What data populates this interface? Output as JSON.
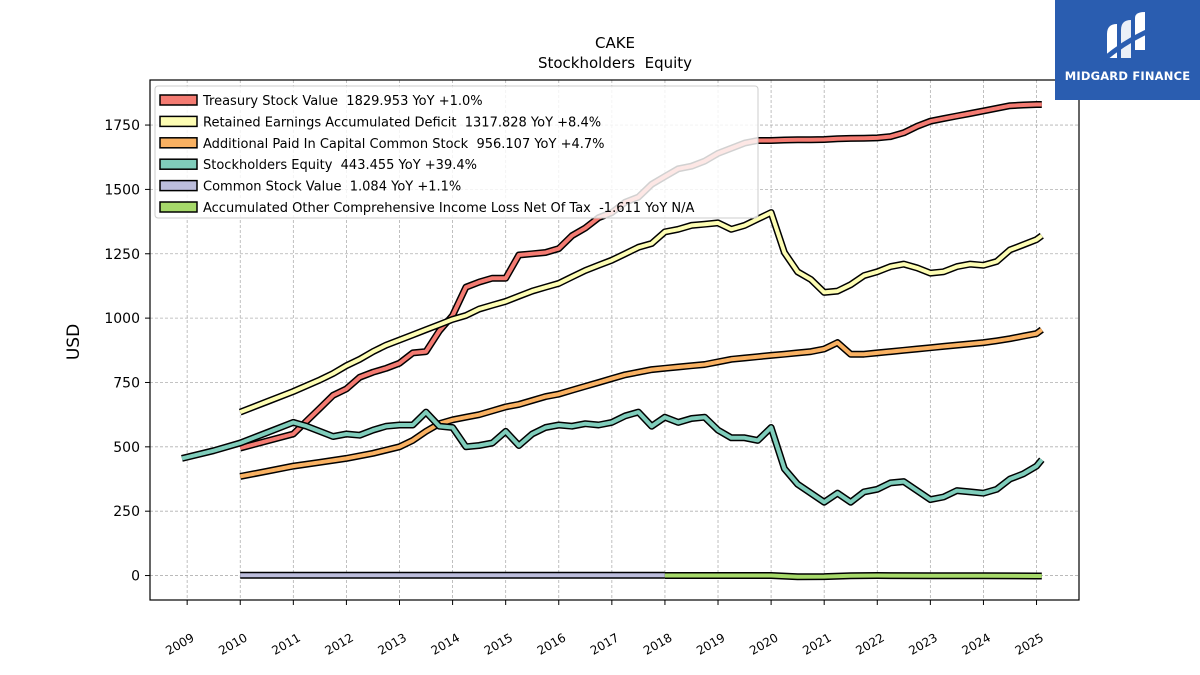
{
  "brand": {
    "name": "MIDGARD FINANCE",
    "bg": "#2a5db0"
  },
  "chart_data": {
    "type": "line",
    "title": "CAKE",
    "subtitle": "Stockholders  Equity",
    "xlabel": "",
    "ylabel": "USD",
    "xlim": [
      2008.3,
      2025.8
    ],
    "ylim": [
      -95,
      1925
    ],
    "yticks": [
      0,
      250,
      500,
      750,
      1000,
      1250,
      1500,
      1750
    ],
    "xticks": [
      "2009",
      "2010",
      "2011",
      "2012",
      "2013",
      "2014",
      "2015",
      "2016",
      "2017",
      "2018",
      "2019",
      "2020",
      "2021",
      "2022",
      "2023",
      "2024",
      "2025"
    ],
    "grid": true,
    "legend_position": "top-left",
    "series": [
      {
        "name": "Treasury Stock Value",
        "legend": "Treasury Stock Value  1829.953 YoY +1.0%",
        "color": "#f47b72",
        "points": [
          [
            2010,
            495
          ],
          [
            2011,
            550
          ],
          [
            2011.25,
            600
          ],
          [
            2011.5,
            650
          ],
          [
            2011.75,
            700
          ],
          [
            2012,
            725
          ],
          [
            2012.25,
            770
          ],
          [
            2012.5,
            790
          ],
          [
            2012.75,
            805
          ],
          [
            2013,
            825
          ],
          [
            2013.25,
            865
          ],
          [
            2013.5,
            870
          ],
          [
            2013.75,
            950
          ],
          [
            2014,
            1010
          ],
          [
            2014.25,
            1120
          ],
          [
            2014.5,
            1140
          ],
          [
            2014.75,
            1155
          ],
          [
            2015,
            1155
          ],
          [
            2015.25,
            1245
          ],
          [
            2015.5,
            1250
          ],
          [
            2015.75,
            1255
          ],
          [
            2016,
            1270
          ],
          [
            2016.25,
            1320
          ],
          [
            2016.5,
            1350
          ],
          [
            2016.75,
            1390
          ],
          [
            2017,
            1410
          ],
          [
            2017.25,
            1450
          ],
          [
            2017.5,
            1470
          ],
          [
            2017.75,
            1520
          ],
          [
            2018,
            1550
          ],
          [
            2018.25,
            1580
          ],
          [
            2018.5,
            1590
          ],
          [
            2018.75,
            1610
          ],
          [
            2019,
            1640
          ],
          [
            2019.25,
            1660
          ],
          [
            2019.5,
            1680
          ],
          [
            2019.75,
            1690
          ],
          [
            2020,
            1690
          ],
          [
            2020.25,
            1692
          ],
          [
            2020.5,
            1693
          ],
          [
            2020.75,
            1693
          ],
          [
            2021,
            1694
          ],
          [
            2021.25,
            1697
          ],
          [
            2021.5,
            1698
          ],
          [
            2021.75,
            1699
          ],
          [
            2022,
            1700
          ],
          [
            2022.25,
            1705
          ],
          [
            2022.5,
            1720
          ],
          [
            2022.75,
            1745
          ],
          [
            2023,
            1765
          ],
          [
            2023.25,
            1775
          ],
          [
            2023.5,
            1785
          ],
          [
            2023.75,
            1795
          ],
          [
            2024,
            1805
          ],
          [
            2024.25,
            1815
          ],
          [
            2024.5,
            1825
          ],
          [
            2024.75,
            1828
          ],
          [
            2025,
            1830
          ],
          [
            2025.1,
            1830
          ]
        ]
      },
      {
        "name": "Retained Earnings Accumulated Deficit",
        "legend": "Retained Earnings Accumulated Deficit  1317.828 YoY +8.4%",
        "color": "#fdfdb3",
        "points": [
          [
            2010,
            635
          ],
          [
            2010.5,
            675
          ],
          [
            2011,
            715
          ],
          [
            2011.5,
            760
          ],
          [
            2011.75,
            785
          ],
          [
            2012,
            815
          ],
          [
            2012.25,
            840
          ],
          [
            2012.5,
            870
          ],
          [
            2012.75,
            895
          ],
          [
            2013,
            915
          ],
          [
            2013.25,
            935
          ],
          [
            2013.5,
            955
          ],
          [
            2013.75,
            975
          ],
          [
            2014,
            995
          ],
          [
            2014.25,
            1010
          ],
          [
            2014.5,
            1035
          ],
          [
            2014.75,
            1050
          ],
          [
            2015,
            1065
          ],
          [
            2015.25,
            1085
          ],
          [
            2015.5,
            1105
          ],
          [
            2015.75,
            1120
          ],
          [
            2016,
            1135
          ],
          [
            2016.25,
            1160
          ],
          [
            2016.5,
            1185
          ],
          [
            2016.75,
            1205
          ],
          [
            2017,
            1225
          ],
          [
            2017.25,
            1250
          ],
          [
            2017.5,
            1275
          ],
          [
            2017.75,
            1290
          ],
          [
            2018,
            1335
          ],
          [
            2018.25,
            1345
          ],
          [
            2018.5,
            1360
          ],
          [
            2018.75,
            1365
          ],
          [
            2019,
            1370
          ],
          [
            2019.25,
            1345
          ],
          [
            2019.5,
            1360
          ],
          [
            2019.75,
            1385
          ],
          [
            2020,
            1410
          ],
          [
            2020.25,
            1255
          ],
          [
            2020.5,
            1180
          ],
          [
            2020.75,
            1150
          ],
          [
            2021,
            1100
          ],
          [
            2021.25,
            1105
          ],
          [
            2021.5,
            1130
          ],
          [
            2021.75,
            1165
          ],
          [
            2022,
            1180
          ],
          [
            2022.25,
            1200
          ],
          [
            2022.5,
            1210
          ],
          [
            2022.75,
            1195
          ],
          [
            2023,
            1175
          ],
          [
            2023.25,
            1180
          ],
          [
            2023.5,
            1200
          ],
          [
            2023.75,
            1210
          ],
          [
            2024,
            1205
          ],
          [
            2024.25,
            1220
          ],
          [
            2024.5,
            1265
          ],
          [
            2024.75,
            1285
          ],
          [
            2025,
            1305
          ],
          [
            2025.1,
            1320
          ]
        ]
      },
      {
        "name": "Additional Paid In Capital Common Stock",
        "legend": "Additional Paid In Capital Common Stock  956.107 YoY +4.7%",
        "color": "#f9b162",
        "points": [
          [
            2010,
            385
          ],
          [
            2010.5,
            405
          ],
          [
            2011,
            425
          ],
          [
            2011.5,
            440
          ],
          [
            2012,
            455
          ],
          [
            2012.5,
            475
          ],
          [
            2013,
            500
          ],
          [
            2013.25,
            525
          ],
          [
            2013.5,
            560
          ],
          [
            2013.75,
            590
          ],
          [
            2014,
            605
          ],
          [
            2014.25,
            615
          ],
          [
            2014.5,
            625
          ],
          [
            2014.75,
            640
          ],
          [
            2015,
            655
          ],
          [
            2015.25,
            665
          ],
          [
            2015.5,
            680
          ],
          [
            2015.75,
            695
          ],
          [
            2016,
            705
          ],
          [
            2016.25,
            720
          ],
          [
            2016.5,
            735
          ],
          [
            2016.75,
            750
          ],
          [
            2017,
            765
          ],
          [
            2017.25,
            780
          ],
          [
            2017.5,
            790
          ],
          [
            2017.75,
            800
          ],
          [
            2018,
            805
          ],
          [
            2018.25,
            810
          ],
          [
            2018.5,
            815
          ],
          [
            2018.75,
            820
          ],
          [
            2019,
            830
          ],
          [
            2019.25,
            840
          ],
          [
            2019.5,
            845
          ],
          [
            2019.75,
            850
          ],
          [
            2020,
            855
          ],
          [
            2020.25,
            860
          ],
          [
            2020.5,
            865
          ],
          [
            2020.75,
            870
          ],
          [
            2021,
            880
          ],
          [
            2021.25,
            905
          ],
          [
            2021.5,
            860
          ],
          [
            2021.75,
            860
          ],
          [
            2022,
            865
          ],
          [
            2022.25,
            870
          ],
          [
            2022.5,
            875
          ],
          [
            2022.75,
            880
          ],
          [
            2023,
            885
          ],
          [
            2023.25,
            890
          ],
          [
            2023.5,
            895
          ],
          [
            2023.75,
            900
          ],
          [
            2024,
            905
          ],
          [
            2024.25,
            912
          ],
          [
            2024.5,
            920
          ],
          [
            2024.75,
            930
          ],
          [
            2025,
            940
          ],
          [
            2025.1,
            955
          ]
        ]
      },
      {
        "name": "Stockholders Equity",
        "legend": "Stockholders Equity  443.455 YoY +39.4%",
        "color": "#7fcdbb",
        "points": [
          [
            2008.9,
            455
          ],
          [
            2009.5,
            485
          ],
          [
            2010,
            515
          ],
          [
            2010.5,
            555
          ],
          [
            2011,
            595
          ],
          [
            2011.25,
            580
          ],
          [
            2011.5,
            560
          ],
          [
            2011.75,
            540
          ],
          [
            2012,
            550
          ],
          [
            2012.25,
            545
          ],
          [
            2012.5,
            565
          ],
          [
            2012.75,
            580
          ],
          [
            2013,
            585
          ],
          [
            2013.25,
            585
          ],
          [
            2013.5,
            635
          ],
          [
            2013.75,
            580
          ],
          [
            2014,
            575
          ],
          [
            2014.25,
            500
          ],
          [
            2014.5,
            505
          ],
          [
            2014.75,
            515
          ],
          [
            2015,
            560
          ],
          [
            2015.25,
            505
          ],
          [
            2015.5,
            550
          ],
          [
            2015.75,
            575
          ],
          [
            2016,
            585
          ],
          [
            2016.25,
            580
          ],
          [
            2016.5,
            590
          ],
          [
            2016.75,
            585
          ],
          [
            2017,
            595
          ],
          [
            2017.25,
            620
          ],
          [
            2017.5,
            635
          ],
          [
            2017.75,
            580
          ],
          [
            2018,
            615
          ],
          [
            2018.25,
            595
          ],
          [
            2018.5,
            610
          ],
          [
            2018.75,
            615
          ],
          [
            2019,
            565
          ],
          [
            2019.25,
            535
          ],
          [
            2019.5,
            535
          ],
          [
            2019.75,
            525
          ],
          [
            2020,
            575
          ],
          [
            2020.25,
            415
          ],
          [
            2020.5,
            355
          ],
          [
            2020.75,
            320
          ],
          [
            2021,
            285
          ],
          [
            2021.25,
            320
          ],
          [
            2021.5,
            285
          ],
          [
            2021.75,
            325
          ],
          [
            2022,
            335
          ],
          [
            2022.25,
            360
          ],
          [
            2022.5,
            365
          ],
          [
            2022.75,
            330
          ],
          [
            2023,
            295
          ],
          [
            2023.25,
            305
          ],
          [
            2023.5,
            330
          ],
          [
            2023.75,
            325
          ],
          [
            2024,
            320
          ],
          [
            2024.25,
            335
          ],
          [
            2024.5,
            375
          ],
          [
            2024.75,
            395
          ],
          [
            2025,
            425
          ],
          [
            2025.1,
            450
          ]
        ]
      },
      {
        "name": "Common Stock Value",
        "legend": "Common Stock Value  1.084 YoY +1.1%",
        "color": "#bcbddc",
        "points": [
          [
            2010,
            1
          ],
          [
            2018,
            1
          ]
        ]
      },
      {
        "name": "Accumulated Other Comprehensive Income Loss Net Of Tax",
        "legend": "Accumulated Other Comprehensive Income Loss Net Of Tax  -1.611 YoY N/A",
        "color": "#a6d96a",
        "points": [
          [
            2018,
            0
          ],
          [
            2019,
            0
          ],
          [
            2020,
            0
          ],
          [
            2020.5,
            -5
          ],
          [
            2021,
            -4
          ],
          [
            2021.5,
            -1
          ],
          [
            2022,
            0
          ],
          [
            2023,
            -1
          ],
          [
            2024,
            -1
          ],
          [
            2025,
            -1.6
          ],
          [
            2025.1,
            -1.6
          ]
        ]
      }
    ]
  }
}
